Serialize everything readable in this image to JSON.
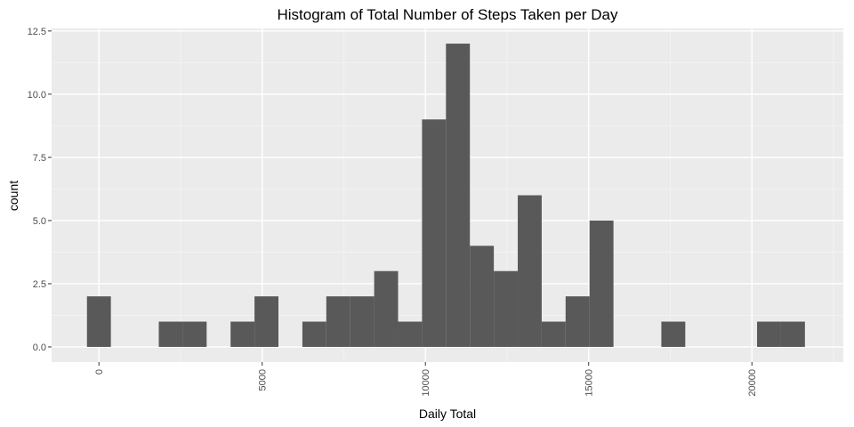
{
  "chart_data": {
    "type": "bar",
    "title": "Histogram of Total Number of Steps Taken per Day",
    "xlabel": "Daily Total",
    "ylabel": "count",
    "bin_width": 733,
    "bins_start": [
      -367,
      367,
      1100,
      1833,
      2566,
      3299,
      4032,
      4765,
      5498,
      6231,
      6964,
      7697,
      8430,
      9163,
      9896,
      10629,
      11362,
      12095,
      12828,
      13561,
      14294,
      15027,
      15760,
      16493,
      17226,
      17959,
      18692,
      19425,
      20158,
      20891
    ],
    "values": [
      2,
      0,
      0,
      1,
      1,
      0,
      1,
      2,
      0,
      1,
      2,
      2,
      3,
      1,
      9,
      12,
      4,
      3,
      6,
      1,
      2,
      5,
      0,
      0,
      1,
      0,
      0,
      0,
      1,
      1
    ],
    "xlim": [
      -1450,
      22800
    ],
    "ylim": [
      -0.6,
      12.6
    ],
    "x_ticks": [
      0,
      5000,
      10000,
      15000,
      20000
    ],
    "x_tick_labels": [
      "0",
      "5000",
      "10000",
      "15000",
      "20000"
    ],
    "y_ticks": [
      0,
      2.5,
      5,
      7.5,
      10,
      12.5
    ],
    "y_tick_labels": [
      "0.0",
      "2.5",
      "5.0",
      "7.5",
      "10.0",
      "12.5"
    ],
    "grid": true,
    "legend": "none",
    "colors": {
      "panel_background": "#ebebeb",
      "grid_major": "#ffffff",
      "grid_minor": "#f5f5f5",
      "bar_fill": "#595959",
      "tick_text": "#4d4d4d",
      "tick_mark": "#333333"
    }
  }
}
